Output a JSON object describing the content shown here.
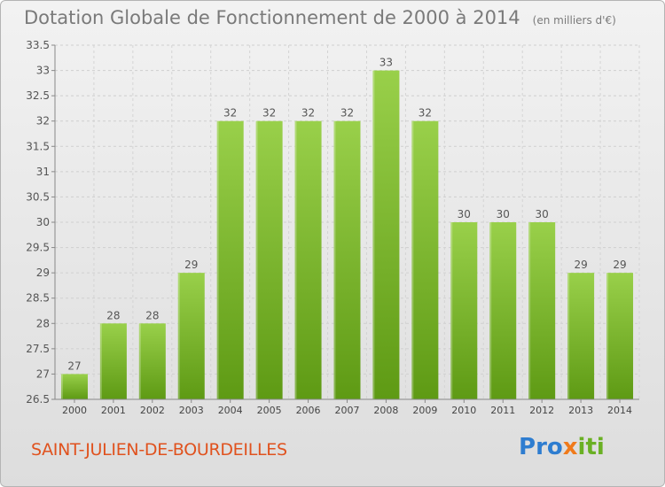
{
  "title": "Dotation Globale de Fonctionnement de 2000 à 2014",
  "unit_note": "(en milliers d'€)",
  "commune": "SAINT-JULIEN-DE-BOURDEILLES",
  "logo": {
    "parts": [
      "P",
      "r",
      "o",
      "x",
      "iti"
    ]
  },
  "colors": {
    "bar_top": "#99d04a",
    "bar_bottom": "#5e9a14",
    "title": "#7a7a7a",
    "commune": "#e0521e"
  },
  "chart_data": {
    "type": "bar",
    "title": "Dotation Globale de Fonctionnement de 2000 à 2014",
    "categories": [
      "2000",
      "2001",
      "2002",
      "2003",
      "2004",
      "2005",
      "2006",
      "2007",
      "2008",
      "2009",
      "2010",
      "2011",
      "2012",
      "2013",
      "2014"
    ],
    "values": [
      27.0,
      28.0,
      28.0,
      29.0,
      32.0,
      32.0,
      32.0,
      32.0,
      33.0,
      32.0,
      30.0,
      30.0,
      30.0,
      29.0,
      29.0
    ],
    "labels": [
      "27",
      "28",
      "28",
      "29",
      "32",
      "32",
      "32",
      "32",
      "33",
      "32",
      "30",
      "30",
      "30",
      "29",
      "29"
    ],
    "ylim": [
      26.5,
      33.5
    ],
    "yticks": [
      "26.5",
      "27",
      "27.5",
      "28",
      "28.5",
      "29",
      "29.5",
      "30",
      "30.5",
      "31",
      "31.5",
      "32",
      "32.5",
      "33",
      "33.5"
    ],
    "grid": true
  }
}
